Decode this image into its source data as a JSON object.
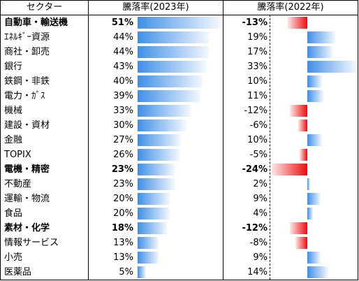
{
  "headers": {
    "sector": "セクター",
    "col2023": "騰落率(2023年)",
    "col2022": "騰落率(2022年)"
  },
  "colors": {
    "positive_bar": "#3f8fe8",
    "negative_bar": "#ee0a0a"
  },
  "rows": [
    {
      "name": "自動車・輸送機",
      "v2023": "51%",
      "v2022": "-13%",
      "bold": true
    },
    {
      "name": "ｴﾈﾙｷﾞｰ資源",
      "v2023": "44%",
      "v2022": "19%",
      "bold": false
    },
    {
      "name": "商社・卸売",
      "v2023": "44%",
      "v2022": "17%",
      "bold": false
    },
    {
      "name": "銀行",
      "v2023": "43%",
      "v2022": "33%",
      "bold": false
    },
    {
      "name": "鉄鋼・非鉄",
      "v2023": "40%",
      "v2022": "10%",
      "bold": false
    },
    {
      "name": "電力・ｶﾞｽ",
      "v2023": "39%",
      "v2022": "11%",
      "bold": false
    },
    {
      "name": "機械",
      "v2023": "33%",
      "v2022": "-12%",
      "bold": false
    },
    {
      "name": "建設・資材",
      "v2023": "30%",
      "v2022": "-6%",
      "bold": false
    },
    {
      "name": "金融",
      "v2023": "27%",
      "v2022": "10%",
      "bold": false
    },
    {
      "name": "TOPIX",
      "v2023": "26%",
      "v2022": "-5%",
      "bold": false
    },
    {
      "name": "電機・精密",
      "v2023": "23%",
      "v2022": "-24%",
      "bold": true
    },
    {
      "name": "不動産",
      "v2023": "23%",
      "v2022": "2%",
      "bold": false
    },
    {
      "name": "運輸・物流",
      "v2023": "20%",
      "v2022": "9%",
      "bold": false
    },
    {
      "name": "食品",
      "v2023": "20%",
      "v2022": "4%",
      "bold": false
    },
    {
      "name": "素材・化学",
      "v2023": "18%",
      "v2022": "-12%",
      "bold": true
    },
    {
      "name": "情報サービス",
      "v2023": "13%",
      "v2022": "-8%",
      "bold": false
    },
    {
      "name": "小売",
      "v2023": "13%",
      "v2022": "9%",
      "bold": false
    },
    {
      "name": "医薬品",
      "v2023": "5%",
      "v2022": "14%",
      "bold": false
    }
  ],
  "chart_data": {
    "type": "bar",
    "categories": [
      "自動車・輸送機",
      "ｴﾈﾙｷﾞｰ資源",
      "商社・卸売",
      "銀行",
      "鉄鋼・非鉄",
      "電力・ｶﾞｽ",
      "機械",
      "建設・資材",
      "金融",
      "TOPIX",
      "電機・精密",
      "不動産",
      "運輸・物流",
      "食品",
      "素材・化学",
      "情報サービス",
      "小売",
      "医薬品"
    ],
    "series": [
      {
        "name": "騰落率(2023年)",
        "values": [
          51,
          44,
          44,
          43,
          40,
          39,
          33,
          30,
          27,
          26,
          23,
          23,
          20,
          20,
          18,
          13,
          13,
          5
        ]
      },
      {
        "name": "騰落率(2022年)",
        "values": [
          -13,
          19,
          17,
          33,
          10,
          11,
          -12,
          -6,
          10,
          -5,
          -24,
          2,
          9,
          4,
          -12,
          -8,
          9,
          14
        ]
      }
    ],
    "unit": "%",
    "bold_categories": [
      "自動車・輸送機",
      "電機・精密",
      "素材・化学"
    ]
  }
}
